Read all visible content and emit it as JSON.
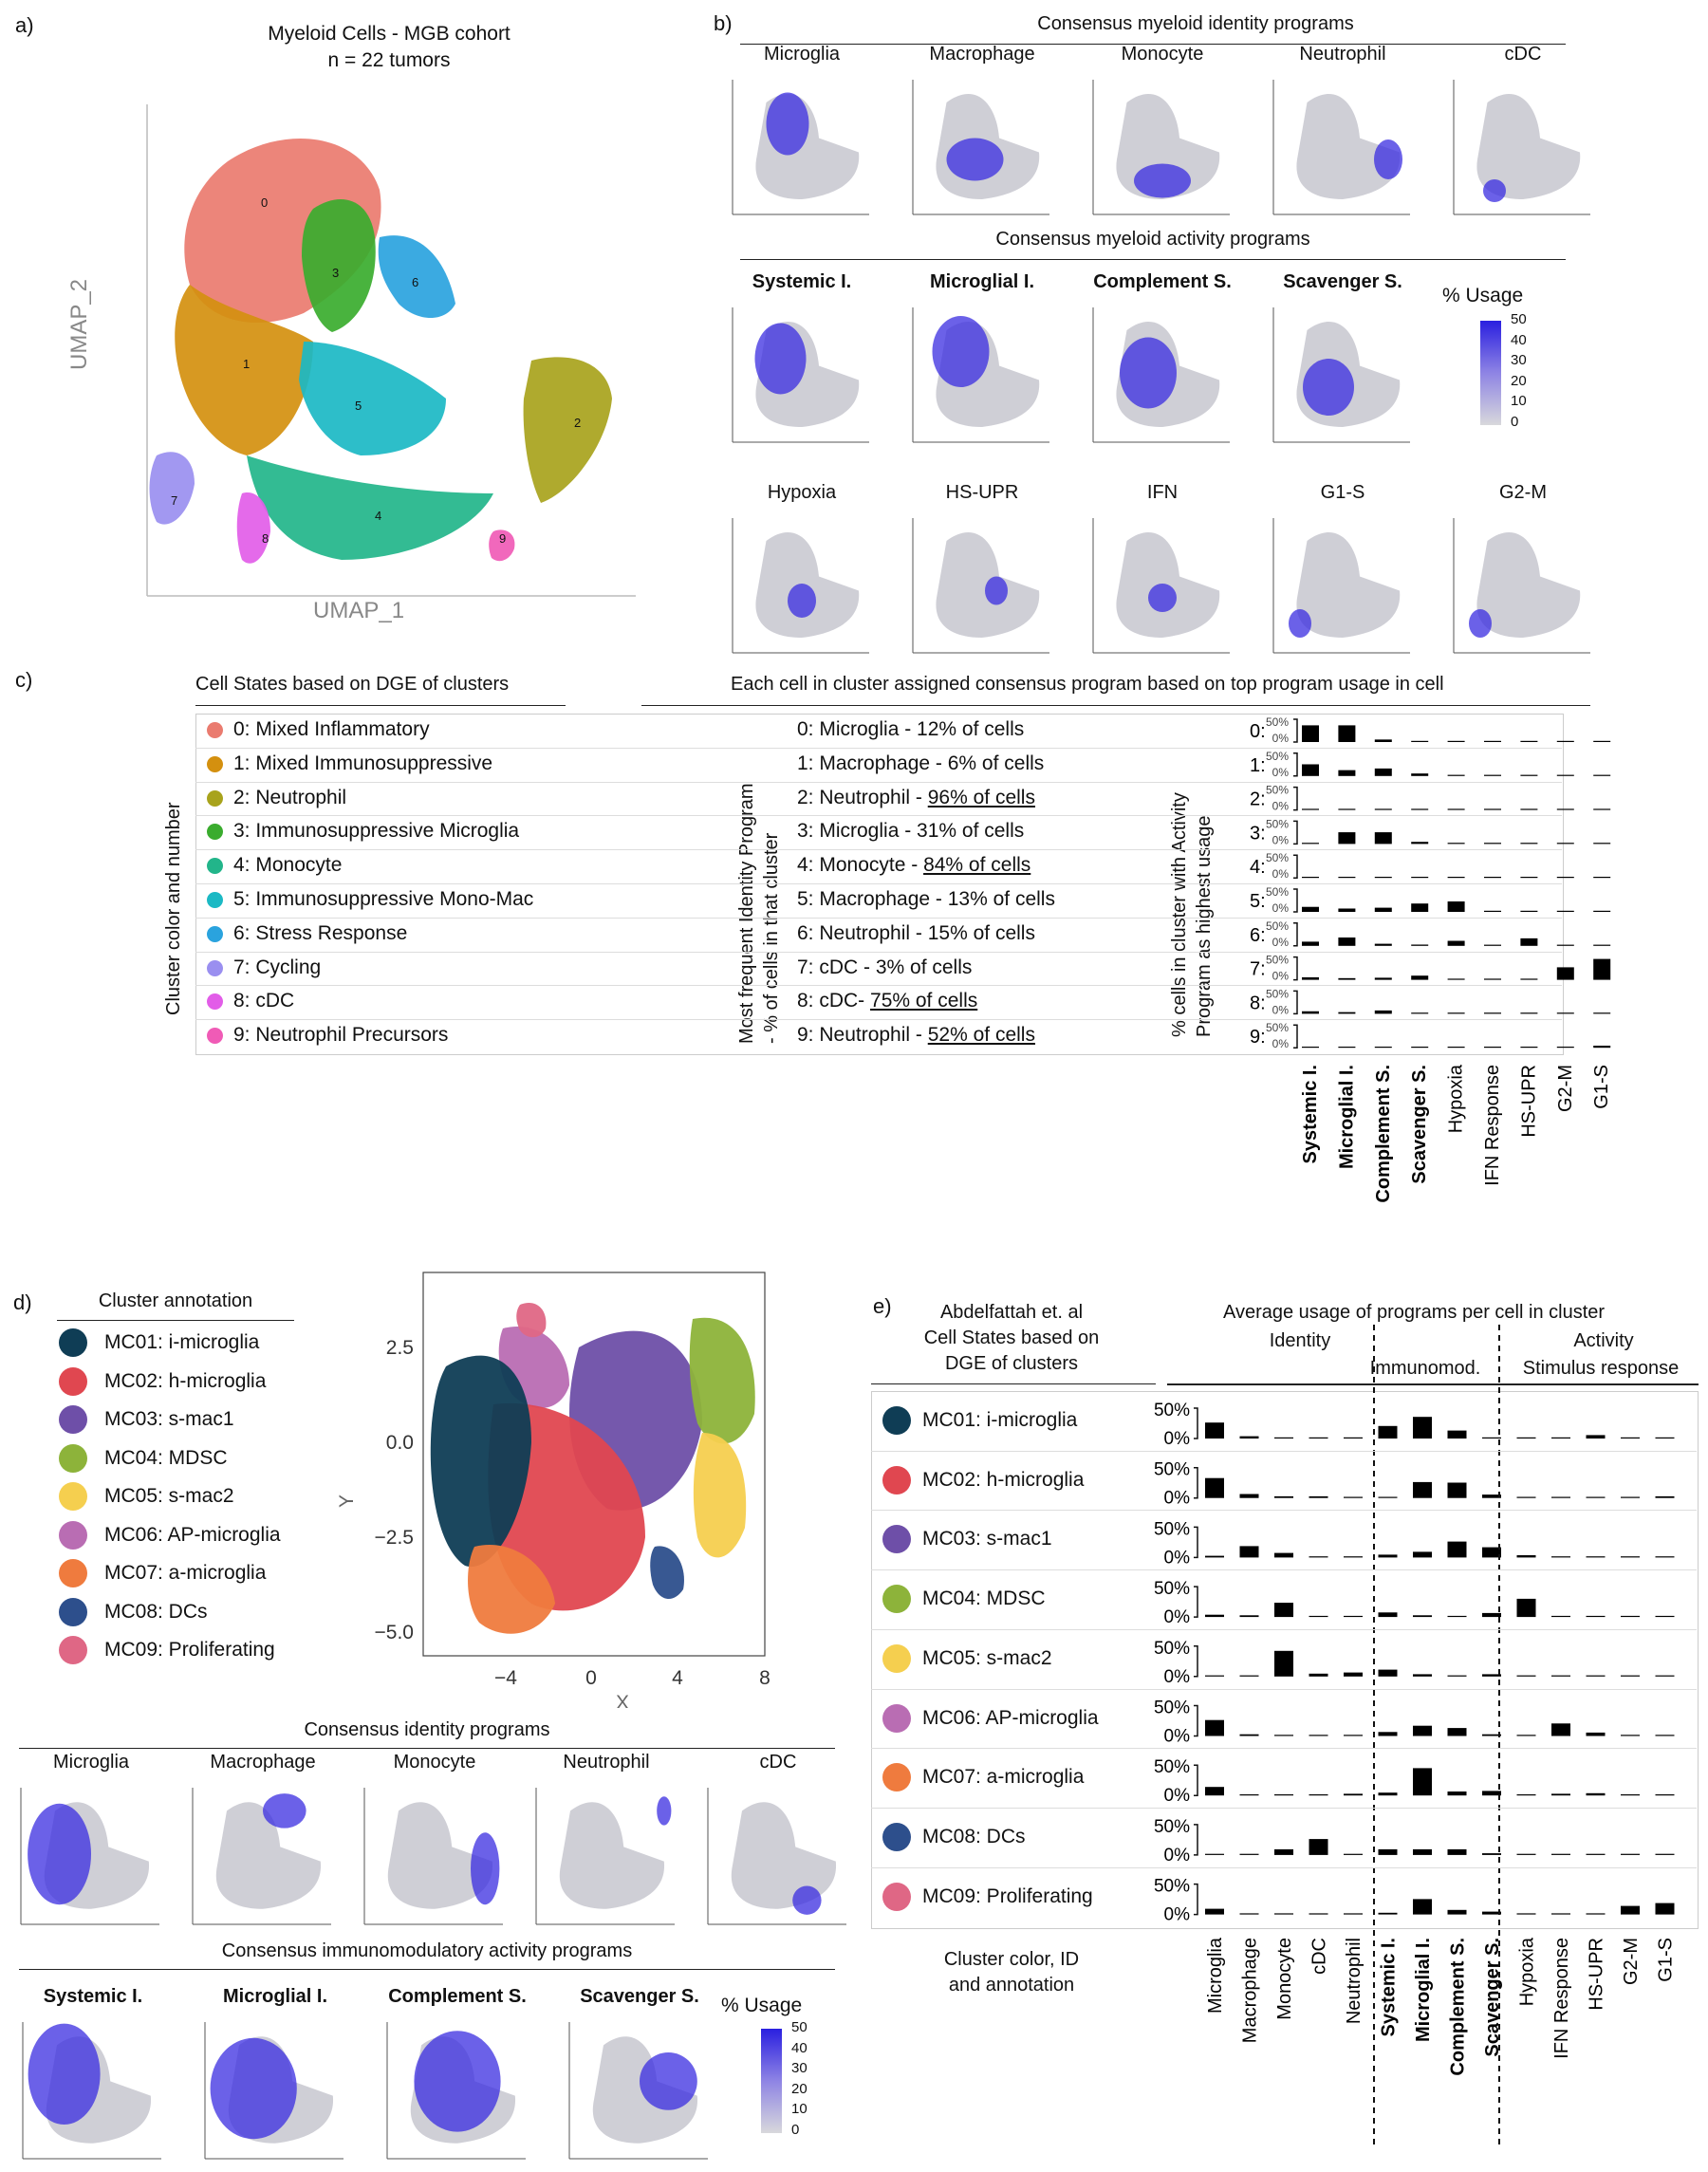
{
  "panel_labels": {
    "a": "a)",
    "b": "b)",
    "c": "c)",
    "d": "d)",
    "e": "e)"
  },
  "panel_a": {
    "title_line1": "Myeloid Cells - MGB cohort",
    "title_line2": "n = 22 tumors",
    "xlabel": "UMAP_1",
    "ylabel": "UMAP_2",
    "clusters": [
      {
        "id": "0",
        "color": "#ea7b6f"
      },
      {
        "id": "1",
        "color": "#d4900f"
      },
      {
        "id": "2",
        "color": "#a8a31c"
      },
      {
        "id": "3",
        "color": "#3aac2e"
      },
      {
        "id": "4",
        "color": "#22b58a"
      },
      {
        "id": "5",
        "color": "#1bb9c4"
      },
      {
        "id": "6",
        "color": "#2aa3de"
      },
      {
        "id": "7",
        "color": "#9a8ff0"
      },
      {
        "id": "8",
        "color": "#e25de8"
      },
      {
        "id": "9",
        "color": "#f05bb6"
      }
    ]
  },
  "panel_b": {
    "identity_header": "Consensus myeloid identity programs",
    "activity_header": "Consensus myeloid activity programs",
    "identity_programs": [
      "Microglia",
      "Macrophage",
      "Monocyte",
      "Neutrophil",
      "cDC"
    ],
    "activity_row1": [
      "Systemic I.",
      "Microglial I.",
      "Complement S.",
      "Scavenger S."
    ],
    "activity_row2": [
      "Hypoxia",
      "HS-UPR",
      "IFN",
      "G1-S",
      "G2-M"
    ],
    "legend": {
      "title": "% Usage",
      "ticks": [
        "50",
        "40",
        "30",
        "20",
        "10",
        "0"
      ],
      "color_high": "#2a1fe0",
      "color_low": "#d8d8dc"
    }
  },
  "panel_c": {
    "left_header": "Cell States based on DGE of clusters",
    "right_header": "Each cell in cluster assigned consensus program based on top program usage in cell",
    "left_ylabel": "Cluster color and number",
    "mid_ylabel_line1": "Most frequent Identity Program",
    "mid_ylabel_line2": "- % of cells in that cluster",
    "right_ylabel_line1": "% cells in cluster with Activity",
    "right_ylabel_line2": "Program as highest usage",
    "cell_states": [
      {
        "label": "0: Mixed Inflammatory",
        "color": "#ea7b6f"
      },
      {
        "label": "1: Mixed Immunosuppressive",
        "color": "#d4900f"
      },
      {
        "label": "2: Neutrophil",
        "color": "#a8a31c"
      },
      {
        "label": "3: Immunosuppressive Microglia",
        "color": "#3aac2e"
      },
      {
        "label": "4: Monocyte",
        "color": "#22b58a"
      },
      {
        "label": "5: Immunosuppressive Mono-Mac",
        "color": "#1bb9c4"
      },
      {
        "label": "6: Stress Response",
        "color": "#2aa3de"
      },
      {
        "label": "7: Cycling",
        "color": "#9a8ff0"
      },
      {
        "label": "8: cDC",
        "color": "#e25de8"
      },
      {
        "label": "9: Neutrophil Precursors",
        "color": "#f05bb6"
      }
    ],
    "identity_rows": [
      {
        "prefix": "0: Microglia - 12% of cells",
        "underlined": ""
      },
      {
        "prefix": "1: Macrophage - 6% of cells",
        "underlined": ""
      },
      {
        "prefix": "2: Neutrophil - ",
        "underlined": "96% of cells"
      },
      {
        "prefix": "3: Microglia - 31% of cells",
        "underlined": ""
      },
      {
        "prefix": "4: Monocyte - ",
        "underlined": "84% of cells"
      },
      {
        "prefix": "5: Macrophage - 13% of cells",
        "underlined": ""
      },
      {
        "prefix": "6: Neutrophil - 15% of cells",
        "underlined": ""
      },
      {
        "prefix": "7: cDC - 3% of cells",
        "underlined": ""
      },
      {
        "prefix": "8: cDC- ",
        "underlined": "75% of cells"
      },
      {
        "prefix": "9: Neutrophil - ",
        "underlined": "52% of cells"
      }
    ],
    "tick_top": "50%",
    "tick_bottom": "0%"
  },
  "panel_d": {
    "annotation_header": "Cluster annotation",
    "annotations": [
      {
        "label": "MC01: i-microglia",
        "color": "#0f3d55"
      },
      {
        "label": "MC02: h-microglia",
        "color": "#e04750"
      },
      {
        "label": "MC03: s-mac1",
        "color": "#6e4fa8"
      },
      {
        "label": "MC04: MDSC",
        "color": "#8db33a"
      },
      {
        "label": "MC05: s-mac2",
        "color": "#f5cf4f"
      },
      {
        "label": "MC06: AP-microglia",
        "color": "#b96db3"
      },
      {
        "label": "MC07: a-microglia",
        "color": "#ef7b3e"
      },
      {
        "label": "MC08: DCs",
        "color": "#2d4f8c"
      },
      {
        "label": "MC09: Proliferating",
        "color": "#df6785"
      }
    ],
    "scatter": {
      "xlabel": "X",
      "ylabel": "Y",
      "xticks": [
        "−4",
        "0",
        "4",
        "8"
      ],
      "yticks": [
        "2.5",
        "0.0",
        "−2.5",
        "−5.0"
      ]
    },
    "identity_header": "Consensus identity programs",
    "identity_programs": [
      "Microglia",
      "Macrophage",
      "Monocyte",
      "Neutrophil",
      "cDC"
    ],
    "activity_header": "Consensus immunomodulatory activity programs",
    "activity_programs": [
      "Systemic I.",
      "Microglial I.",
      "Complement S.",
      "Scavenger S."
    ],
    "legend": {
      "title": "% Usage",
      "ticks": [
        "50",
        "40",
        "30",
        "20",
        "10",
        "0"
      ]
    }
  },
  "panel_e": {
    "left_header": [
      "Abdelfattah et. al",
      "Cell States based on",
      "DGE of clusters"
    ],
    "right_header": "Average usage of programs per cell in cluster",
    "group_identity": "Identity",
    "group_activity": "Activity",
    "sub_immunomod": "Immunomod.",
    "sub_stimulus": "Stimulus response",
    "footer": [
      "Cluster color, ID",
      "and annotation"
    ],
    "tick_top": "50%",
    "tick_bottom": "0%"
  },
  "chart_data": [
    {
      "type": "heatmap",
      "panel": "c",
      "title": "Each cell in cluster assigned consensus program based on top program usage in cell",
      "ylabel": "% cells in cluster with Activity Program as highest usage",
      "row_labels": [
        "0:",
        "1:",
        "2:",
        "3:",
        "4:",
        "5:",
        "6:",
        "7:",
        "8:",
        "9:"
      ],
      "categories": [
        "Systemic I.",
        "Microglial I.",
        "Complement S.",
        "Scavenger S.",
        "Hypoxia",
        "IFN Response",
        "HS-UPR",
        "G2-M",
        "G1-S"
      ],
      "bold_categories": [
        "Systemic I.",
        "Microglial I.",
        "Complement S.",
        "Scavenger S."
      ],
      "ylim": [
        0,
        50
      ],
      "rows": [
        [
          40,
          40,
          6,
          1,
          1,
          1,
          1,
          1,
          1
        ],
        [
          28,
          14,
          18,
          6,
          1,
          1,
          1,
          1,
          1
        ],
        [
          1,
          1,
          1,
          1,
          1,
          1,
          1,
          1,
          1
        ],
        [
          1,
          28,
          28,
          5,
          1,
          1,
          1,
          1,
          1
        ],
        [
          1,
          1,
          1,
          1,
          1,
          1,
          1,
          1,
          1
        ],
        [
          12,
          8,
          10,
          20,
          25,
          2,
          1,
          1,
          1
        ],
        [
          10,
          20,
          5,
          3,
          12,
          2,
          18,
          1,
          1
        ],
        [
          6,
          4,
          5,
          10,
          2,
          1,
          1,
          30,
          50
        ],
        [
          6,
          4,
          8,
          1,
          1,
          1,
          1,
          1,
          1
        ],
        [
          2,
          1,
          1,
          2,
          1,
          1,
          2,
          2,
          5
        ]
      ]
    },
    {
      "type": "bar",
      "panel": "e",
      "title": "Average usage of programs per cell in cluster",
      "row_labels": [
        "MC01: i-microglia",
        "MC02: h-microglia",
        "MC03: s-mac1",
        "MC04: MDSC",
        "MC05: s-mac2",
        "MC06: AP-microglia",
        "MC07: a-microglia",
        "MC08: DCs",
        "MC09: Proliferating"
      ],
      "categories": [
        "Microglia",
        "Macrophage",
        "Monocyte",
        "cDC",
        "Neutrophil",
        "Systemic I.",
        "Microglial I.",
        "Complement S.",
        "Scavenger S.",
        "Hypoxia",
        "IFN Response",
        "HS-UPR",
        "G2-M",
        "G1-S"
      ],
      "bold_categories": [
        "Systemic I.",
        "Microglial I.",
        "Complement S.",
        "Scavenger S."
      ],
      "ylim": [
        0,
        50
      ],
      "rows": [
        [
          28,
          4,
          1,
          1,
          1,
          22,
          38,
          14,
          2,
          2,
          2,
          6,
          1,
          1
        ],
        [
          35,
          7,
          3,
          3,
          1,
          2,
          28,
          27,
          6,
          2,
          2,
          2,
          1,
          3
        ],
        [
          3,
          20,
          8,
          2,
          1,
          5,
          10,
          28,
          18,
          4,
          2,
          1,
          1,
          1
        ],
        [
          4,
          3,
          25,
          1,
          2,
          8,
          3,
          2,
          7,
          32,
          2,
          1,
          1,
          1
        ],
        [
          2,
          2,
          45,
          5,
          7,
          12,
          4,
          2,
          4,
          2,
          1,
          1,
          1,
          1
        ],
        [
          28,
          3,
          2,
          1,
          1,
          7,
          18,
          14,
          3,
          2,
          22,
          6,
          1,
          1
        ],
        [
          15,
          2,
          2,
          1,
          3,
          5,
          48,
          7,
          8,
          2,
          3,
          4,
          1,
          1
        ],
        [
          2,
          2,
          10,
          28,
          2,
          10,
          10,
          10,
          3,
          2,
          2,
          1,
          1,
          1
        ],
        [
          10,
          2,
          2,
          1,
          1,
          3,
          27,
          8,
          5,
          2,
          2,
          2,
          15,
          20
        ]
      ]
    }
  ]
}
